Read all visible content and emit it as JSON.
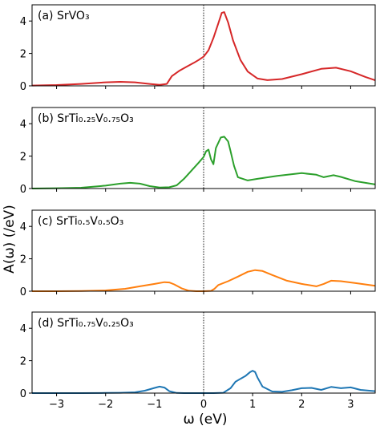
{
  "chart_data": {
    "type": "line",
    "shared_x": {
      "label": "ω (eV)",
      "range": [
        -3.5,
        3.5
      ],
      "ticks": [
        -3,
        -2,
        -1,
        0,
        1,
        2,
        3
      ],
      "tick_labels": [
        "−3",
        "−2",
        "−1",
        "0",
        "1",
        "2",
        "3"
      ]
    },
    "shared_y_label": "A(ω) (/eV)",
    "reference_line": {
      "x": 0,
      "style": "dotted"
    },
    "panels": [
      {
        "label": "(a) SrVO₃",
        "color": "#d62728",
        "ylim": [
          0,
          5
        ],
        "yticks": [
          0,
          2,
          4
        ],
        "x": [
          -3.5,
          -3.0,
          -2.5,
          -2.0,
          -1.7,
          -1.4,
          -1.1,
          -0.9,
          -0.75,
          -0.65,
          -0.5,
          -0.35,
          -0.2,
          -0.1,
          0.0,
          0.1,
          0.2,
          0.3,
          0.37,
          0.42,
          0.5,
          0.6,
          0.75,
          0.9,
          1.1,
          1.3,
          1.6,
          2.0,
          2.4,
          2.7,
          3.0,
          3.3,
          3.5
        ],
        "y": [
          0.02,
          0.05,
          0.12,
          0.22,
          0.25,
          0.22,
          0.12,
          0.06,
          0.12,
          0.6,
          0.92,
          1.18,
          1.42,
          1.6,
          1.8,
          2.2,
          2.95,
          3.85,
          4.5,
          4.55,
          3.9,
          2.8,
          1.6,
          0.88,
          0.45,
          0.35,
          0.42,
          0.72,
          1.05,
          1.12,
          0.9,
          0.55,
          0.34
        ]
      },
      {
        "label": "(b) SrTi₀.₂₅V₀.₇₅O₃",
        "color": "#2ca02c",
        "ylim": [
          0,
          5
        ],
        "yticks": [
          0,
          2,
          4
        ],
        "x": [
          -3.5,
          -3.0,
          -2.5,
          -2.0,
          -1.7,
          -1.5,
          -1.3,
          -1.1,
          -0.9,
          -0.7,
          -0.55,
          -0.4,
          -0.25,
          -0.1,
          0.0,
          0.05,
          0.1,
          0.15,
          0.2,
          0.25,
          0.35,
          0.42,
          0.5,
          0.55,
          0.62,
          0.7,
          0.9,
          1.1,
          1.5,
          2.0,
          2.3,
          2.45,
          2.65,
          2.8,
          3.1,
          3.5
        ],
        "y": [
          0.0,
          0.02,
          0.05,
          0.18,
          0.3,
          0.35,
          0.3,
          0.15,
          0.06,
          0.08,
          0.2,
          0.6,
          1.1,
          1.6,
          1.95,
          2.3,
          2.4,
          1.8,
          1.5,
          2.5,
          3.15,
          3.2,
          2.9,
          2.3,
          1.4,
          0.7,
          0.5,
          0.6,
          0.78,
          0.95,
          0.85,
          0.7,
          0.82,
          0.72,
          0.45,
          0.25
        ]
      },
      {
        "label": "(c) SrTi₀.₅V₀.₅O₃",
        "color": "#ff7f0e",
        "ylim": [
          0,
          5
        ],
        "yticks": [
          0,
          2,
          4
        ],
        "x": [
          -3.5,
          -3.0,
          -2.5,
          -2.0,
          -1.6,
          -1.3,
          -1.0,
          -0.8,
          -0.7,
          -0.6,
          -0.45,
          -0.3,
          -0.15,
          0.0,
          0.15,
          0.22,
          0.3,
          0.5,
          0.7,
          0.9,
          1.05,
          1.2,
          1.4,
          1.7,
          2.0,
          2.3,
          2.45,
          2.6,
          2.8,
          3.1,
          3.5
        ],
        "y": [
          0.0,
          0.0,
          0.01,
          0.05,
          0.15,
          0.3,
          0.45,
          0.56,
          0.54,
          0.42,
          0.18,
          0.03,
          0.0,
          0.0,
          0.02,
          0.15,
          0.38,
          0.62,
          0.9,
          1.2,
          1.3,
          1.25,
          1.0,
          0.65,
          0.45,
          0.3,
          0.45,
          0.65,
          0.62,
          0.5,
          0.33
        ]
      },
      {
        "label": "(d) SrTi₀.₇₅V₀.₂₅O₃",
        "color": "#1f77b4",
        "ylim": [
          0,
          5
        ],
        "yticks": [
          0,
          2,
          4
        ],
        "x": [
          -3.5,
          -3.0,
          -2.5,
          -2.0,
          -1.7,
          -1.4,
          -1.2,
          -1.0,
          -0.9,
          -0.8,
          -0.7,
          -0.55,
          -0.4,
          -0.2,
          0.0,
          0.2,
          0.4,
          0.55,
          0.65,
          0.75,
          0.85,
          0.95,
          1.0,
          1.05,
          1.1,
          1.2,
          1.4,
          1.6,
          1.8,
          2.0,
          2.2,
          2.4,
          2.6,
          2.8,
          3.0,
          3.2,
          3.5
        ],
        "y": [
          0.0,
          0.0,
          0.0,
          0.01,
          0.02,
          0.05,
          0.15,
          0.32,
          0.4,
          0.34,
          0.12,
          0.01,
          0.0,
          0.0,
          0.0,
          0.0,
          0.02,
          0.3,
          0.7,
          0.88,
          1.05,
          1.3,
          1.38,
          1.3,
          0.95,
          0.4,
          0.1,
          0.08,
          0.18,
          0.3,
          0.32,
          0.2,
          0.38,
          0.3,
          0.35,
          0.2,
          0.12
        ]
      }
    ]
  }
}
